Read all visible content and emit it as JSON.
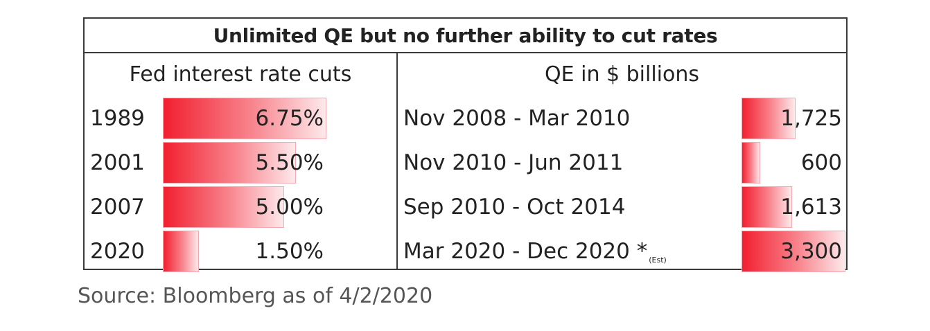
{
  "chart_data": [
    {
      "type": "table",
      "title": "Unlimited QE but no further ability to cut rates",
      "header": "Fed interest rate cuts",
      "rows": [
        {
          "year": "1989",
          "value": 6.75,
          "label": "6.75%"
        },
        {
          "year": "2001",
          "value": 5.5,
          "label": "5.50%"
        },
        {
          "year": "2007",
          "value": 5.0,
          "label": "5.00%"
        },
        {
          "year": "2020",
          "value": 1.5,
          "label": "1.50%"
        }
      ],
      "max": 6.75,
      "bar_color": "#f21f2f"
    },
    {
      "type": "table",
      "header": "QE in $ billions",
      "rows": [
        {
          "period": "Nov 2008 - Mar 2010",
          "note": "",
          "value": 1725,
          "label": "1,725"
        },
        {
          "period": "Nov 2010 - Jun 2011",
          "note": "",
          "value": 600,
          "label": "600"
        },
        {
          "period": "Sep 2010 - Oct 2014",
          "note": "",
          "value": 1613,
          "label": "1,613"
        },
        {
          "period": "Mar 2020 - Dec 2020 *",
          "note": "(Est)",
          "value": 3300,
          "label": "3,300"
        }
      ],
      "max": 3300,
      "bar_color": "#f21f2f"
    }
  ],
  "source": "Source: Bloomberg as of 4/2/2020"
}
